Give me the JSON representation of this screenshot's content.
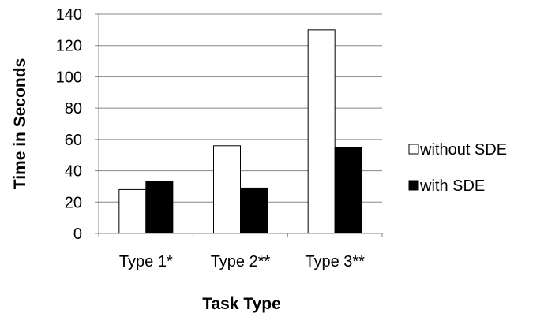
{
  "chart_data": {
    "type": "bar",
    "title": "",
    "xlabel": "Task Type",
    "ylabel": "Time in Seconds",
    "categories": [
      "Type 1*",
      "Type 2**",
      "Type 3**"
    ],
    "series": [
      {
        "name": "without SDE",
        "values": [
          28,
          56,
          130
        ],
        "color": "#ffffff"
      },
      {
        "name": "with SDE",
        "values": [
          33,
          29,
          55
        ],
        "color": "#000000"
      }
    ],
    "ylim": [
      0,
      140
    ],
    "yticks": [
      0,
      20,
      40,
      60,
      80,
      100,
      120,
      140
    ],
    "grid": true,
    "legend_position": "right"
  }
}
